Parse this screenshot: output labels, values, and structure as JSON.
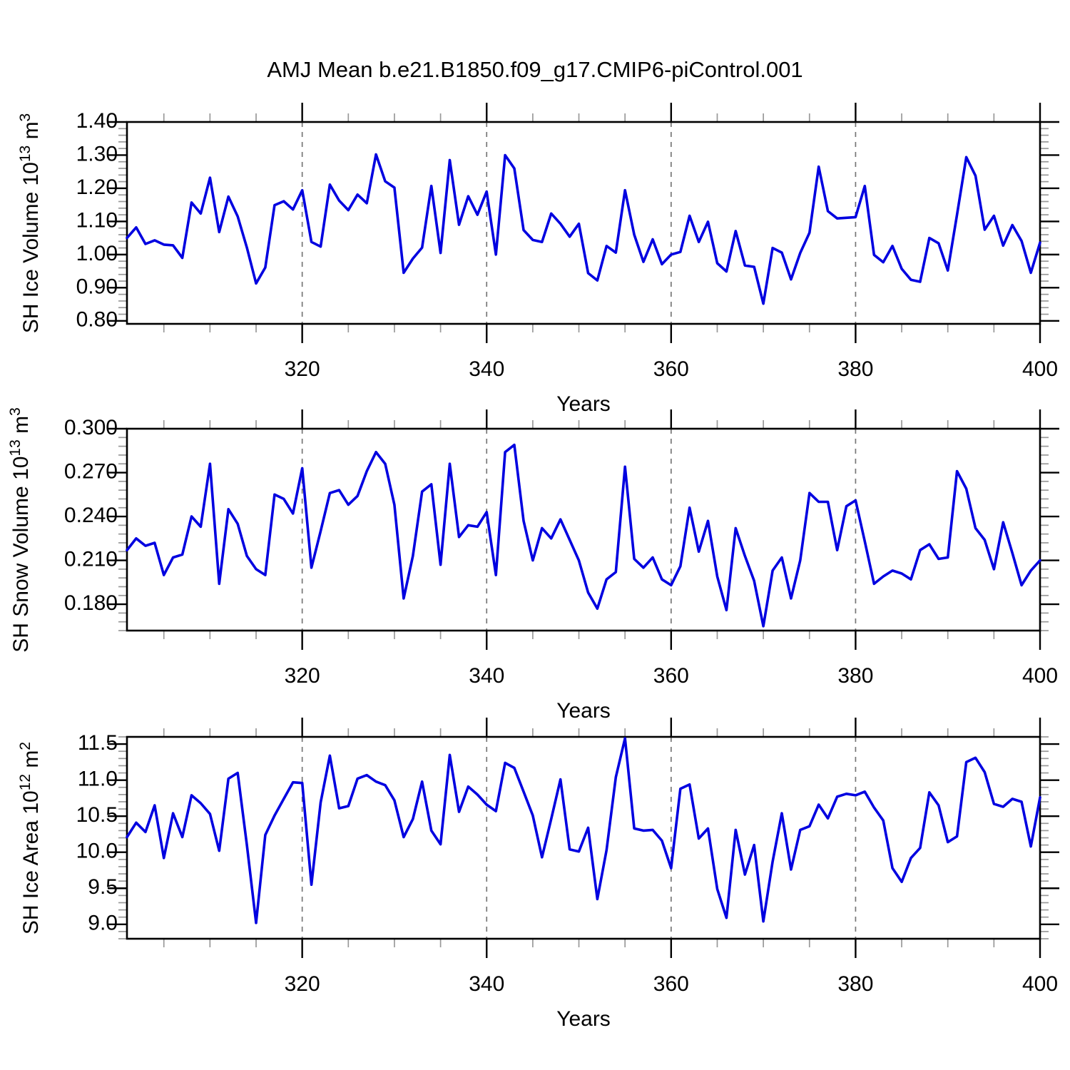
{
  "title": "AMJ Mean b.e21.B1850.f09_g17.CMIP6-piControl.001",
  "colors": {
    "series_blue": "#0000e0",
    "frame_black": "#000000",
    "grid_gray": "#777777",
    "minor_tick_gray": "#999999",
    "background": "#ffffff"
  },
  "chart_data": [
    {
      "id": "sh-ice-volume",
      "type": "line",
      "title": "",
      "ylabel": "SH Ice Volume 10^13 m^3",
      "ylabel_parts": [
        [
          "SH Ice Volume 10",
          0
        ],
        [
          "13",
          1
        ],
        [
          " m",
          0
        ],
        [
          "3",
          1
        ]
      ],
      "xlabel": "Years",
      "x_start": 301,
      "x_end": 400,
      "xlim": [
        301,
        400
      ],
      "xticks": [
        320,
        340,
        360,
        380,
        400
      ],
      "xtick_labels": [
        "320",
        "340",
        "360",
        "380",
        "400"
      ],
      "xtick_minor_step": 5,
      "grid_x": [
        320,
        340,
        360,
        380
      ],
      "yticks": [
        0.8,
        0.9,
        1.0,
        1.1,
        1.2,
        1.3,
        1.4
      ],
      "ytick_labels": [
        "0.80",
        "0.90",
        "1.00",
        "1.10",
        "1.20",
        "1.30",
        "1.40"
      ],
      "ytick_minor_step": 0.02,
      "ylim": [
        0.8,
        1.4
      ],
      "values": [
        1.05,
        1.082,
        1.032,
        1.043,
        1.03,
        1.028,
        0.99,
        1.157,
        1.124,
        1.232,
        1.068,
        1.175,
        1.115,
        1.021,
        0.913,
        0.961,
        1.149,
        1.161,
        1.136,
        1.194,
        1.038,
        1.024,
        1.211,
        1.163,
        1.134,
        1.181,
        1.155,
        1.302,
        1.221,
        1.202,
        0.945,
        0.988,
        1.021,
        1.207,
        1.005,
        1.285,
        1.09,
        1.176,
        1.12,
        1.19,
        1.0,
        1.3,
        1.26,
        1.074,
        1.044,
        1.038,
        1.124,
        1.093,
        1.054,
        1.093,
        0.944,
        0.922,
        1.026,
        1.006,
        1.194,
        1.06,
        0.978,
        1.046,
        0.971,
        1.0,
        1.008,
        1.117,
        1.038,
        1.099,
        0.974,
        0.949,
        1.071,
        0.967,
        0.963,
        0.852,
        1.02,
        1.006,
        0.925,
        1.005,
        1.066,
        1.265,
        1.131,
        1.109,
        1.111,
        1.113,
        1.207,
        0.999,
        0.977,
        1.026,
        0.957,
        0.924,
        0.918,
        1.05,
        1.034,
        0.952,
        1.12,
        1.294,
        1.238,
        1.075,
        1.117,
        1.027,
        1.089,
        1.041,
        0.945,
        1.036
      ]
    },
    {
      "id": "sh-snow-volume",
      "type": "line",
      "title": "",
      "ylabel": "SH Snow Volume 10^13 m^3",
      "ylabel_parts": [
        [
          "SH Snow Volume 10",
          0
        ],
        [
          "13",
          1
        ],
        [
          " m",
          0
        ],
        [
          "3",
          1
        ]
      ],
      "xlabel": "Years",
      "x_start": 301,
      "x_end": 400,
      "xlim": [
        301,
        400
      ],
      "xticks": [
        320,
        340,
        360,
        380,
        400
      ],
      "xtick_labels": [
        "320",
        "340",
        "360",
        "380",
        "400"
      ],
      "xtick_minor_step": 5,
      "grid_x": [
        320,
        340,
        360,
        380
      ],
      "yticks": [
        0.18,
        0.21,
        0.24,
        0.27,
        0.3
      ],
      "ytick_labels": [
        "0.180",
        "0.210",
        "0.240",
        "0.270",
        "0.300"
      ],
      "ytick_minor_step": 0.006,
      "ylim": [
        0.18,
        0.3
      ],
      "values": [
        0.217,
        0.225,
        0.22,
        0.222,
        0.2,
        0.212,
        0.214,
        0.24,
        0.233,
        0.276,
        0.194,
        0.245,
        0.235,
        0.213,
        0.204,
        0.2,
        0.255,
        0.252,
        0.242,
        0.273,
        0.205,
        0.23,
        0.256,
        0.258,
        0.248,
        0.254,
        0.271,
        0.284,
        0.276,
        0.248,
        0.184,
        0.213,
        0.257,
        0.262,
        0.207,
        0.276,
        0.226,
        0.234,
        0.233,
        0.243,
        0.2,
        0.284,
        0.289,
        0.237,
        0.21,
        0.232,
        0.225,
        0.238,
        0.224,
        0.21,
        0.188,
        0.177,
        0.197,
        0.202,
        0.274,
        0.211,
        0.205,
        0.212,
        0.197,
        0.193,
        0.206,
        0.246,
        0.216,
        0.237,
        0.199,
        0.176,
        0.232,
        0.213,
        0.196,
        0.165,
        0.203,
        0.212,
        0.184,
        0.21,
        0.256,
        0.25,
        0.25,
        0.217,
        0.247,
        0.251,
        0.223,
        0.194,
        0.199,
        0.203,
        0.201,
        0.197,
        0.217,
        0.221,
        0.211,
        0.212,
        0.271,
        0.259,
        0.232,
        0.224,
        0.204,
        0.236,
        0.215,
        0.193,
        0.203,
        0.21
      ]
    },
    {
      "id": "sh-ice-area",
      "type": "line",
      "title": "",
      "ylabel": "SH Ice Area 10^12 m^2",
      "ylabel_parts": [
        [
          "SH Ice Area 10",
          0
        ],
        [
          "12",
          1
        ],
        [
          " m",
          0
        ],
        [
          "2",
          1
        ]
      ],
      "xlabel": "Years",
      "x_start": 301,
      "x_end": 400,
      "xlim": [
        301,
        400
      ],
      "xticks": [
        320,
        340,
        360,
        380,
        400
      ],
      "xtick_labels": [
        "320",
        "340",
        "360",
        "380",
        "400"
      ],
      "xtick_minor_step": 5,
      "grid_x": [
        320,
        340,
        360,
        380
      ],
      "yticks": [
        9.0,
        9.5,
        10.0,
        10.5,
        11.0,
        11.5
      ],
      "ytick_labels": [
        "9.0",
        "9.5",
        "10.0",
        "10.5",
        "11.0",
        "11.5"
      ],
      "ytick_minor_step": 0.1,
      "ylim": [
        9.0,
        11.5
      ],
      "values": [
        10.21,
        10.41,
        10.28,
        10.65,
        9.92,
        10.54,
        10.21,
        10.79,
        10.68,
        10.53,
        10.02,
        11.02,
        11.1,
        10.1,
        9.02,
        10.24,
        10.51,
        10.74,
        10.97,
        10.96,
        9.55,
        10.69,
        11.34,
        10.61,
        10.64,
        11.02,
        11.07,
        10.98,
        10.93,
        10.72,
        10.21,
        10.46,
        10.98,
        10.3,
        10.11,
        11.35,
        10.56,
        10.91,
        10.8,
        10.66,
        10.57,
        11.24,
        11.17,
        10.84,
        10.51,
        9.93,
        10.46,
        11.01,
        10.04,
        10.01,
        10.34,
        9.35,
        10.03,
        11.04,
        11.58,
        10.33,
        10.3,
        10.31,
        10.16,
        9.78,
        10.88,
        10.94,
        10.19,
        10.33,
        9.49,
        9.09,
        10.31,
        9.69,
        10.1,
        9.04,
        9.87,
        10.54,
        9.76,
        10.31,
        10.36,
        10.66,
        10.47,
        10.77,
        10.81,
        10.79,
        10.84,
        10.62,
        10.44,
        9.78,
        9.59,
        9.92,
        10.06,
        10.83,
        10.65,
        10.14,
        10.22,
        11.25,
        11.31,
        11.11,
        10.67,
        10.63,
        10.74,
        10.7,
        10.08,
        10.76
      ]
    }
  ]
}
